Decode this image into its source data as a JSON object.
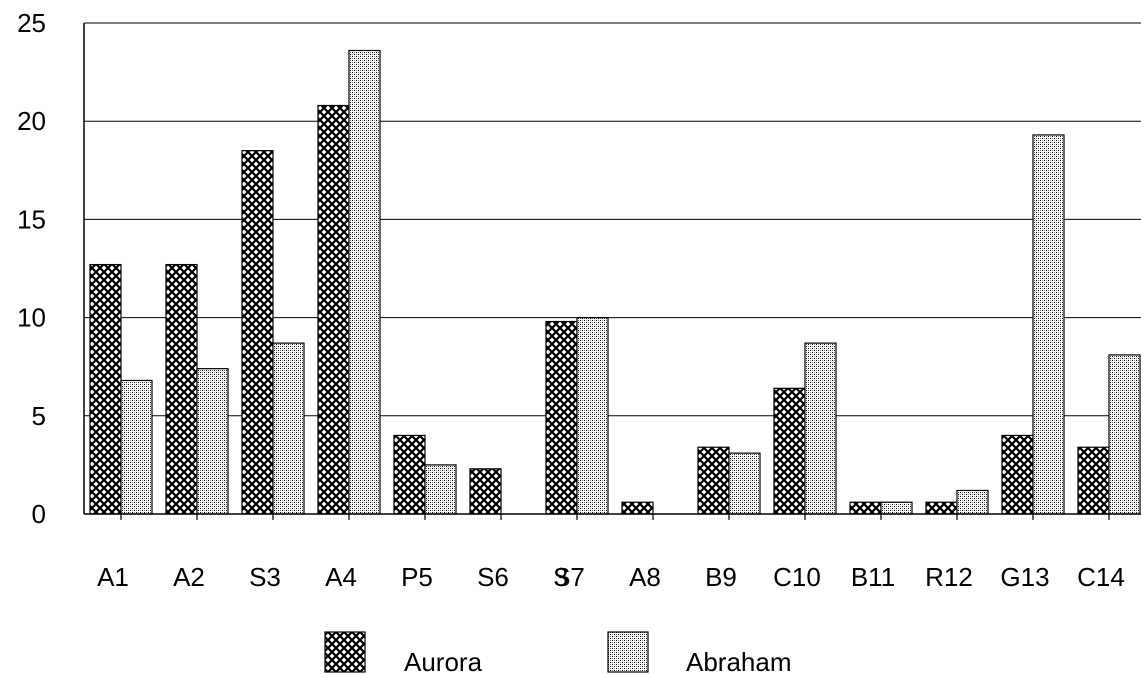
{
  "chart_data": {
    "type": "bar",
    "title": "",
    "xlabel": "",
    "ylabel": "",
    "categories": [
      "A1",
      "A2",
      "S3",
      "A4",
      "P5",
      "S6",
      "S7",
      "A8",
      "B9",
      "C10",
      "B11",
      "R12",
      "G13",
      "C14"
    ],
    "overlap_label": "3",
    "series": [
      {
        "name": "Aurora",
        "values": [
          12.7,
          12.7,
          18.5,
          20.8,
          4.0,
          2.3,
          9.8,
          0.6,
          3.4,
          6.4,
          0.6,
          0.6,
          4.0,
          3.4
        ]
      },
      {
        "name": "Abraham",
        "values": [
          6.8,
          7.4,
          8.7,
          23.6,
          2.5,
          0.0,
          10.0,
          0.0,
          3.1,
          8.7,
          0.6,
          1.2,
          19.3,
          8.1
        ]
      }
    ],
    "ylim": [
      0,
      25
    ],
    "yticks": [
      0,
      5,
      10,
      15,
      20,
      25
    ],
    "grid": true,
    "legend": "bottom",
    "colors": {
      "Aurora": "#000000",
      "Abraham": "#000000"
    }
  }
}
